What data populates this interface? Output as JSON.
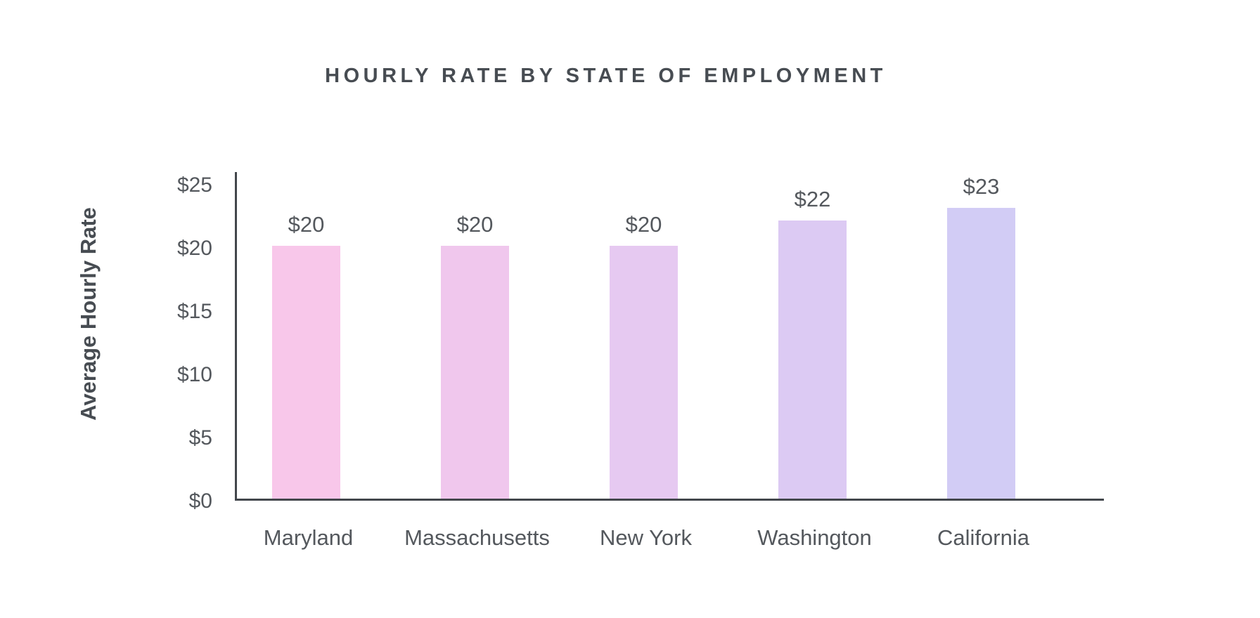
{
  "chart_data": {
    "type": "bar",
    "title": "HOURLY RATE BY STATE OF EMPLOYMENT",
    "xlabel": "",
    "ylabel": "Average Hourly Rate",
    "categories": [
      "Maryland",
      "Massachusetts",
      "New York",
      "Washington",
      "California"
    ],
    "values": [
      20,
      20,
      20,
      22,
      23
    ],
    "value_labels": [
      "$20",
      "$20",
      "$20",
      "$22",
      "$23"
    ],
    "y_ticks": [
      0,
      5,
      10,
      15,
      20,
      25
    ],
    "y_tick_labels": [
      "$0",
      "$5",
      "$10",
      "$15",
      "$20",
      "$25"
    ],
    "ylim": [
      0,
      26
    ],
    "grid": false,
    "legend_position": "none",
    "bar_colors": [
      "#f8c7ea",
      "#f0c7ed",
      "#e6c9f1",
      "#dccaf3",
      "#d2ccf5"
    ],
    "axis_color": "#43474c",
    "text_color": "#54585d",
    "title_color": "#474c52",
    "background_color": "#ffffff"
  }
}
